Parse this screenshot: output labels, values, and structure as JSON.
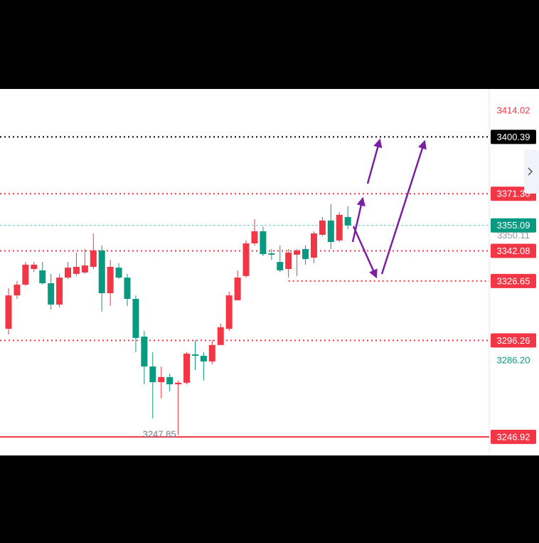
{
  "chart_data": {
    "type": "candlestick",
    "ylim": [
      3237.4,
      3424.9
    ],
    "up_color": "#f23645",
    "down_color": "#089981",
    "open": [
      3302.2,
      3319.3,
      3324.8,
      3332.8,
      3332.1,
      3325.5,
      3314.6,
      3328.4,
      3330.3,
      3331.0,
      3333.9,
      3342.3,
      3320.4,
      3333.5,
      3328.4,
      3317.5,
      3298.2,
      3282.9,
      3274.9,
      3277.5,
      3273.8,
      3274.6,
      3289.1,
      3288.4,
      3285.5,
      3293.9,
      3302.2,
      3316.8,
      3329.2,
      3345.9,
      3352.1,
      3340.8,
      3336.4,
      3332.8,
      3340.1,
      3343.0,
      3338.6,
      3350.3,
      3357.6,
      3347.4,
      3359.4
    ],
    "high": [
      3323.0,
      3326.6,
      3336.4,
      3336.4,
      3336.4,
      3330.3,
      3330.3,
      3336.4,
      3341.2,
      3343.0,
      3351.0,
      3344.8,
      3337.5,
      3335.7,
      3330.3,
      3319.3,
      3301.1,
      3290.2,
      3282.9,
      3279.3,
      3275.7,
      3290.2,
      3296.4,
      3290.2,
      3296.4,
      3304.8,
      3321.2,
      3332.1,
      3347.4,
      3358.3,
      3354.6,
      3343.0,
      3344.8,
      3343.0,
      3343.0,
      3344.8,
      3352.1,
      3359.4,
      3365.9,
      3361.9,
      3364.8
    ],
    "low": [
      3299.3,
      3317.5,
      3324.1,
      3331.3,
      3324.8,
      3312.1,
      3313.1,
      3327.7,
      3329.2,
      3330.3,
      3332.8,
      3311.0,
      3313.9,
      3327.7,
      3313.9,
      3290.2,
      3273.8,
      3256.4,
      3266.6,
      3270.2,
      3247.85,
      3273.8,
      3281.1,
      3275.7,
      3284.0,
      3293.9,
      3301.1,
      3316.8,
      3328.4,
      3344.8,
      3339.4,
      3337.5,
      3331.3,
      3328.4,
      3329.2,
      3335.0,
      3335.7,
      3349.5,
      3343.0,
      3346.6,
      3353.2
    ],
    "close": [
      3319.3,
      3324.8,
      3335.0,
      3335.0,
      3325.5,
      3314.6,
      3328.4,
      3333.5,
      3333.9,
      3334.6,
      3342.3,
      3320.4,
      3333.9,
      3328.4,
      3317.5,
      3297.5,
      3282.9,
      3274.9,
      3277.5,
      3273.8,
      3274.6,
      3289.5,
      3288.4,
      3285.5,
      3293.9,
      3303.0,
      3319.3,
      3328.4,
      3345.9,
      3352.1,
      3340.4,
      3340.1,
      3332.1,
      3341.2,
      3342.3,
      3337.9,
      3351.0,
      3357.6,
      3346.6,
      3360.5,
      3355.09
    ],
    "low_annotation": "3247.85",
    "price_levels": [
      {
        "value": 3414.02,
        "label": "3414.02",
        "color": "#f23645",
        "box": false,
        "line": "none"
      },
      {
        "value": 3400.39,
        "label": "3400.39",
        "color": "#000000",
        "box": true,
        "line": "dotted"
      },
      {
        "value": 3371.3,
        "label": "3371.30",
        "color": "#f23645",
        "box": true,
        "line": "dotted"
      },
      {
        "value": 3355.09,
        "label": "3355.09",
        "color": "#089981",
        "box": true,
        "line": "dashed"
      },
      {
        "value": 3350.11,
        "label": "3350.11",
        "color": "#9598a1",
        "box": false,
        "line": "none"
      },
      {
        "value": 3342.08,
        "label": "3342.08",
        "color": "#f23645",
        "box": true,
        "line": "dotted"
      },
      {
        "value": 3326.65,
        "label": "3326.65",
        "color": "#f23645",
        "box": true,
        "line": "dotted",
        "from_candle": 33
      },
      {
        "value": 3296.26,
        "label": "3296.26",
        "color": "#f23645",
        "box": true,
        "line": "dotted"
      },
      {
        "value": 3286.2,
        "label": "3286.20",
        "color": "#089981",
        "box": false,
        "line": "none"
      },
      {
        "value": 3246.92,
        "label": "3246.92",
        "color": "#f23645",
        "box": true,
        "line": "solid"
      }
    ]
  }
}
